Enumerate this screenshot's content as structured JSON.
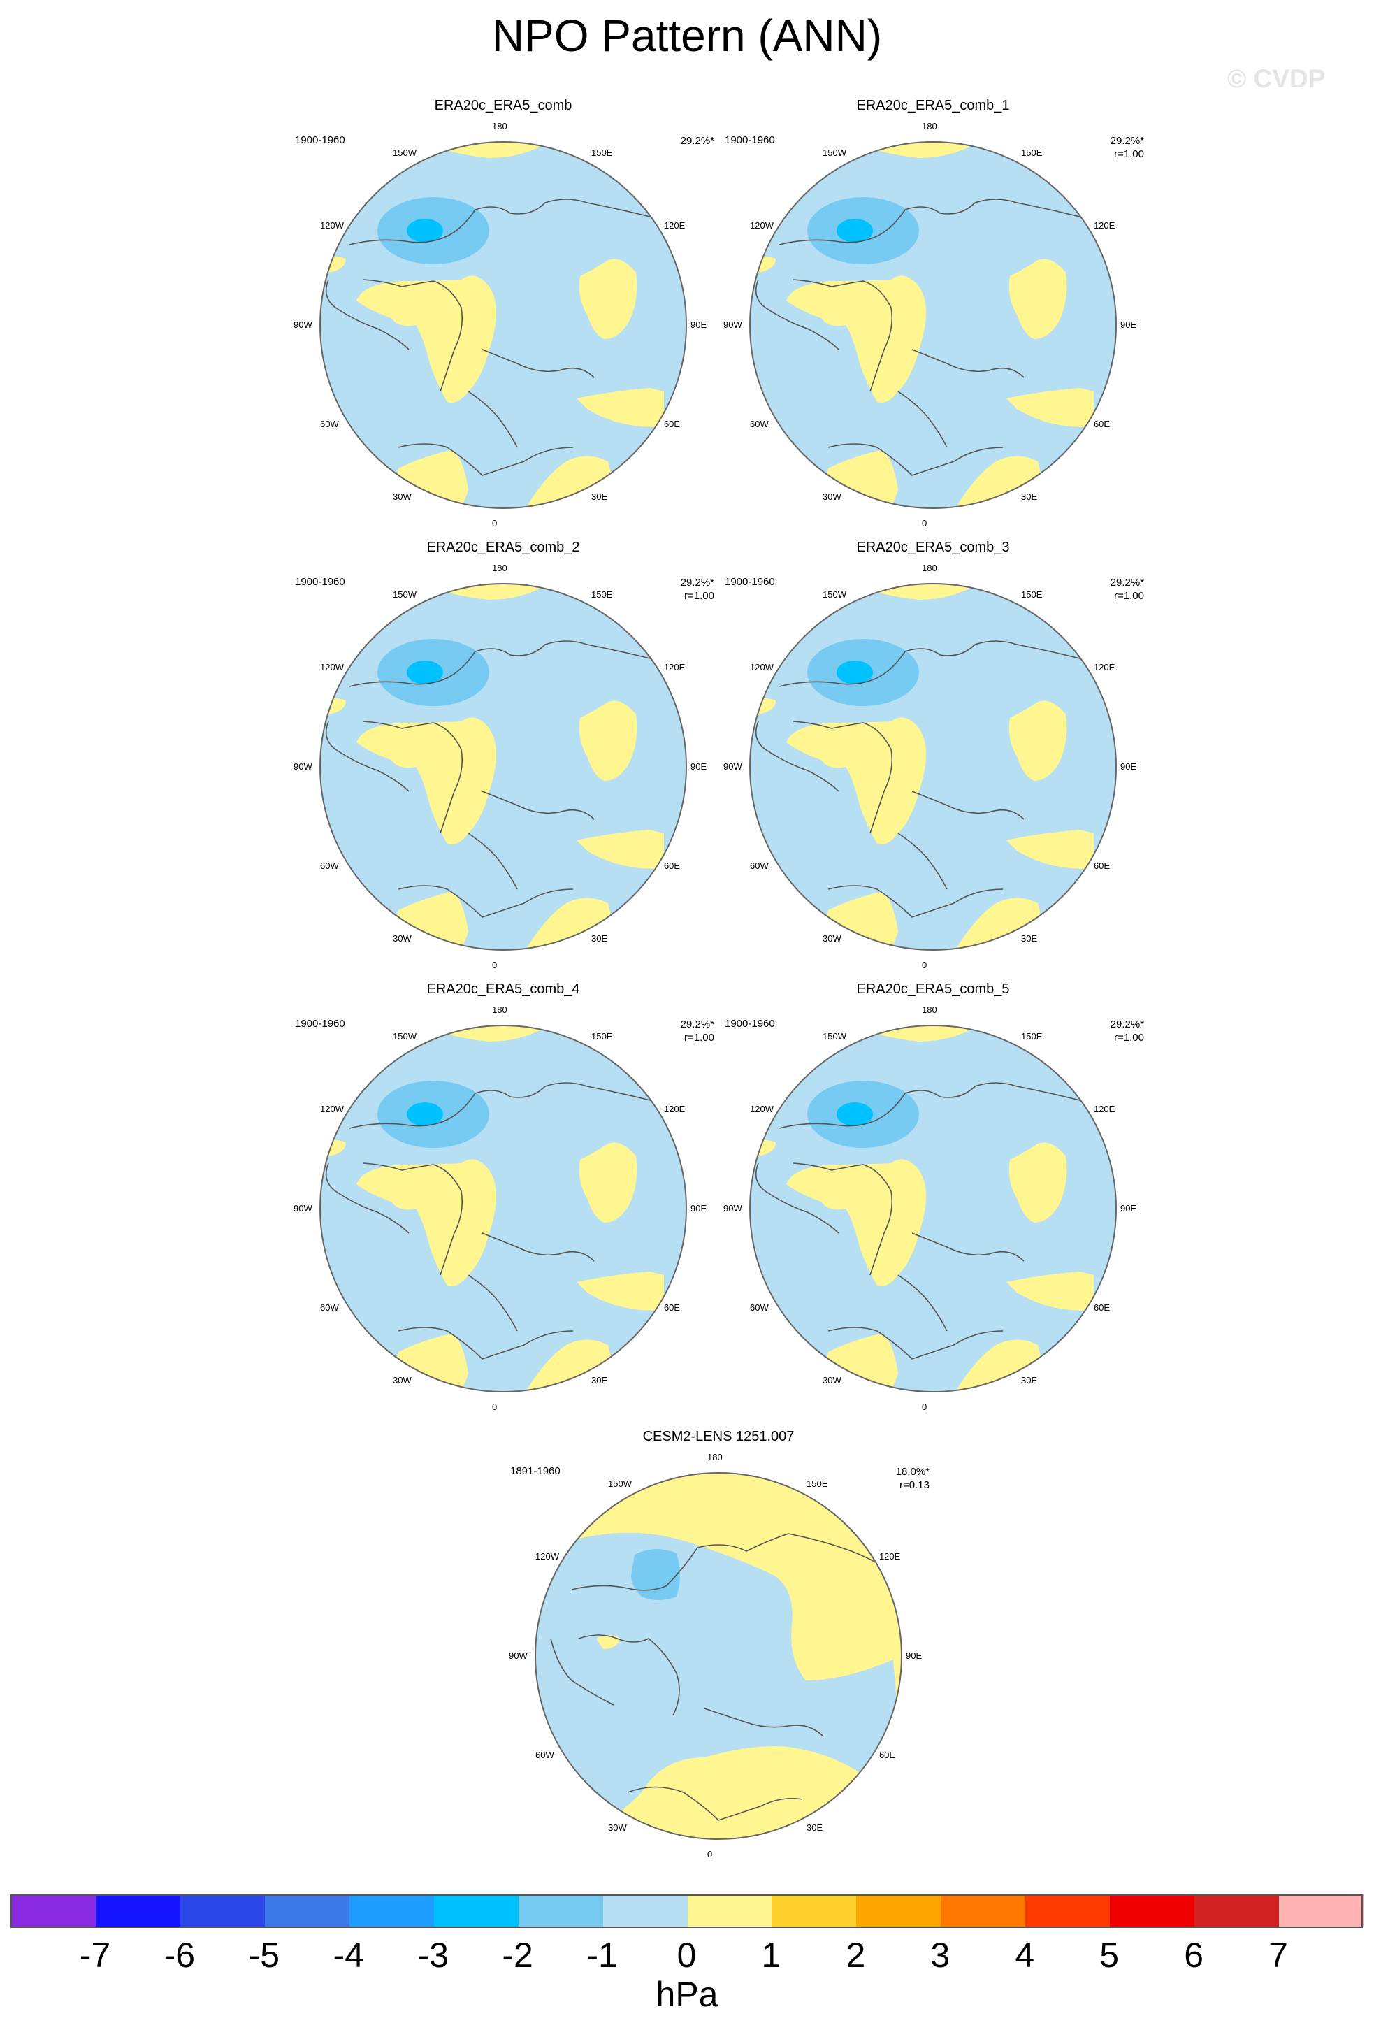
{
  "figure": {
    "title": "NPO Pattern (ANN)",
    "copyright": "© CVDP",
    "unit": "hPa"
  },
  "longitude_labels": [
    "180",
    "150E",
    "120E",
    "90E",
    "60E",
    "30E",
    "0",
    "30W",
    "60W",
    "90W",
    "120W",
    "150W"
  ],
  "colorbar": {
    "ticks": [
      "-7",
      "-6",
      "-5",
      "-4",
      "-3",
      "-2",
      "-1",
      "0",
      "1",
      "2",
      "3",
      "4",
      "5",
      "6",
      "7"
    ],
    "colors": [
      "#8a2be2",
      "#1414ff",
      "#2a45e8",
      "#3a78e8",
      "#1f9cff",
      "#00c1ff",
      "#77cbf2",
      "#b7dff3",
      "#fff691",
      "#ffd02b",
      "#ffa500",
      "#ff7800",
      "#ff3c00",
      "#ee0000",
      "#d02020",
      "#ffb3b3"
    ]
  },
  "panels": [
    {
      "title": "ERA20c_ERA5_comb",
      "period": "1900-1960",
      "pct": "29.2%*",
      "r": "",
      "pattern": "obs"
    },
    {
      "title": "ERA20c_ERA5_comb_1",
      "period": "1900-1960",
      "pct": "29.2%*",
      "r": "r=1.00",
      "pattern": "obs"
    },
    {
      "title": "ERA20c_ERA5_comb_2",
      "period": "1900-1960",
      "pct": "29.2%*",
      "r": "r=1.00",
      "pattern": "obs"
    },
    {
      "title": "ERA20c_ERA5_comb_3",
      "period": "1900-1960",
      "pct": "29.2%*",
      "r": "r=1.00",
      "pattern": "obs"
    },
    {
      "title": "ERA20c_ERA5_comb_4",
      "period": "1900-1960",
      "pct": "29.2%*",
      "r": "r=1.00",
      "pattern": "obs"
    },
    {
      "title": "ERA20c_ERA5_comb_5",
      "period": "1900-1960",
      "pct": "29.2%*",
      "r": "r=1.00",
      "pattern": "obs"
    },
    {
      "title": "CESM2-LENS 1251.007",
      "period": "1891-1960",
      "pct": "18.0%*",
      "r": "r=0.13",
      "pattern": "model"
    }
  ]
}
